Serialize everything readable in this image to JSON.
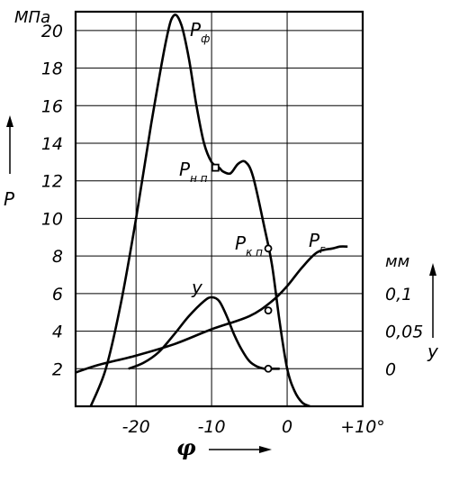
{
  "chart_data": {
    "type": "line",
    "x_axis": {
      "symbol": "φ",
      "range": [
        -28,
        10
      ],
      "ticks": [
        {
          "value": -20,
          "label": "-20"
        },
        {
          "value": -10,
          "label": "-10"
        },
        {
          "value": 0,
          "label": "0"
        },
        {
          "value": 10,
          "label": "+10°"
        }
      ]
    },
    "y_left": {
      "symbol": "P",
      "unit": "МПа",
      "range": [
        0,
        21
      ],
      "ticks": [
        2,
        4,
        6,
        8,
        10,
        12,
        14,
        16,
        18,
        20
      ]
    },
    "y_right": {
      "symbol": "y",
      "unit": "мм",
      "ticks": [
        {
          "value": 0,
          "label": "0"
        },
        {
          "value": 0.05,
          "label": "0,05"
        },
        {
          "value": 0.1,
          "label": "0,1"
        }
      ]
    },
    "grid": true,
    "series": [
      {
        "name": "P",
        "sub": "ф",
        "axis": "left",
        "points": [
          [
            -26,
            0
          ],
          [
            -24,
            2
          ],
          [
            -22,
            5.5
          ],
          [
            -20,
            10
          ],
          [
            -18,
            15
          ],
          [
            -16,
            19.5
          ],
          [
            -15,
            20.8
          ],
          [
            -14,
            20.3
          ],
          [
            -13,
            18.5
          ],
          [
            -12,
            16
          ],
          [
            -11,
            14
          ],
          [
            -10,
            13
          ],
          [
            -9,
            12.7
          ],
          [
            -8.5,
            12.5
          ],
          [
            -7.5,
            12.4
          ],
          [
            -6.5,
            12.9
          ],
          [
            -5.5,
            13
          ],
          [
            -4.5,
            12.2
          ],
          [
            -3,
            9.5
          ],
          [
            -2,
            7.5
          ],
          [
            -1,
            4.5
          ],
          [
            0,
            2
          ],
          [
            1,
            0.8
          ],
          [
            2,
            0.2
          ],
          [
            3,
            0
          ]
        ]
      },
      {
        "name": "P",
        "sub": "г",
        "axis": "left",
        "points": [
          [
            -28,
            1.8
          ],
          [
            -25,
            2.2
          ],
          [
            -20,
            2.7
          ],
          [
            -15,
            3.3
          ],
          [
            -10,
            4.1
          ],
          [
            -5,
            4.8
          ],
          [
            -2,
            5.6
          ],
          [
            0,
            6.4
          ],
          [
            2,
            7.4
          ],
          [
            4,
            8.2
          ],
          [
            6,
            8.4
          ],
          [
            7,
            8.5
          ],
          [
            8,
            8.5
          ]
        ]
      },
      {
        "name": "y",
        "axis": "right",
        "points": [
          [
            -21,
            0
          ],
          [
            -19,
            0.008
          ],
          [
            -17,
            0.022
          ],
          [
            -15,
            0.045
          ],
          [
            -13,
            0.07
          ],
          [
            -11,
            0.09
          ],
          [
            -10,
            0.095
          ],
          [
            -9,
            0.09
          ],
          [
            -8,
            0.07
          ],
          [
            -7,
            0.045
          ],
          [
            -6,
            0.025
          ],
          [
            -5,
            0.01
          ],
          [
            -4,
            0.003
          ],
          [
            -3,
            0
          ],
          [
            -2.5,
            0
          ],
          [
            -1,
            0
          ]
        ]
      }
    ],
    "markers": [
      {
        "name": "P",
        "sub": "н п",
        "x": -9.5,
        "y": 12.7,
        "axis": "left"
      },
      {
        "name": "P",
        "sub": "к п",
        "x": -2.5,
        "y": 8.4,
        "axis": "left"
      },
      {
        "x": -2.5,
        "y": 5.1,
        "axis": "left"
      },
      {
        "x": -2.5,
        "y": 2,
        "axis": "left"
      }
    ]
  }
}
